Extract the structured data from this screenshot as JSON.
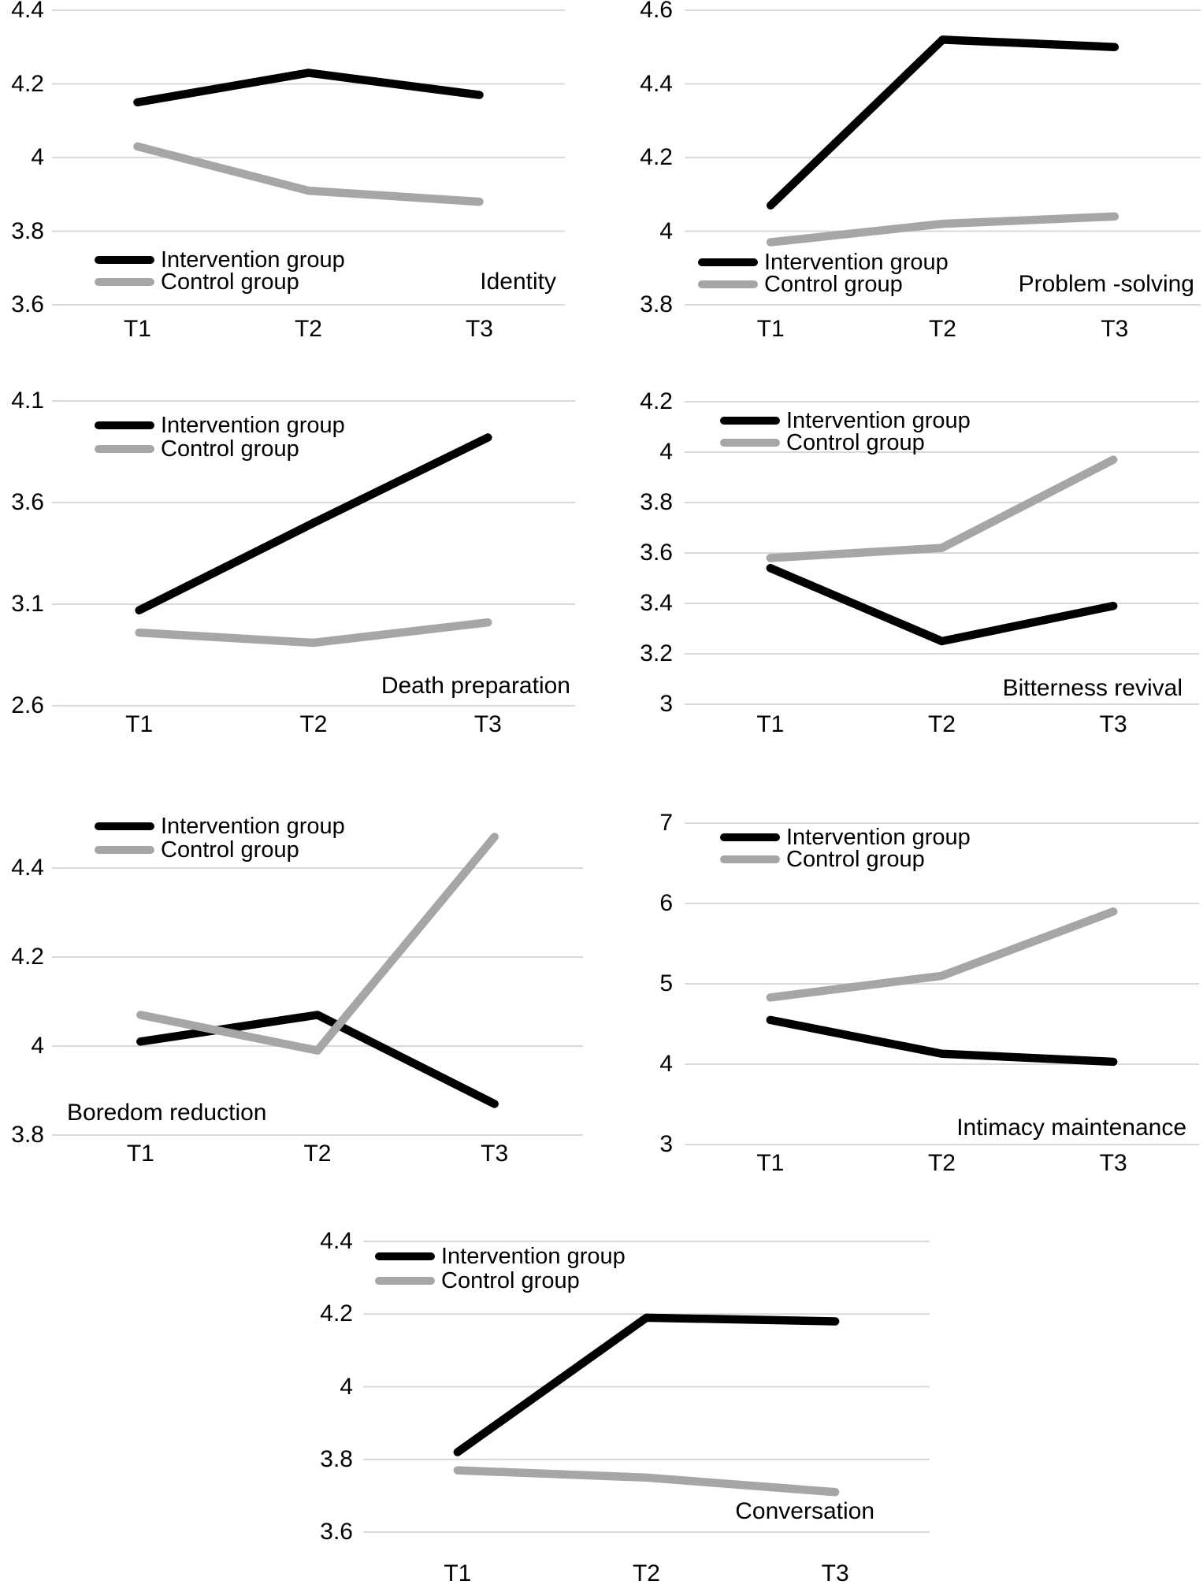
{
  "figure": {
    "background": "#ffffff",
    "gridline_color": "#d9d9d9",
    "text_color": "#000000",
    "legend": {
      "items": [
        {
          "label": "Intervention group",
          "color": "#000000"
        },
        {
          "label": "Control group",
          "color": "#a6a6a6"
        }
      ]
    }
  },
  "chart_data": [
    {
      "type": "line",
      "title": "Identity",
      "categories": [
        "T1",
        "T2",
        "T3"
      ],
      "yticks": [
        4.4,
        4.2,
        4,
        3.8,
        3.6
      ],
      "ylim": [
        3.6,
        4.4
      ],
      "grid": true,
      "legend_position": "inside-bottom-left",
      "title_position": "inside-bottom-right",
      "series": [
        {
          "name": "Intervention group",
          "color": "#000000",
          "values": [
            4.15,
            4.23,
            4.17
          ]
        },
        {
          "name": "Control group",
          "color": "#a6a6a6",
          "values": [
            4.03,
            3.91,
            3.88
          ]
        }
      ]
    },
    {
      "type": "line",
      "title": "Problem -solving",
      "categories": [
        "T1",
        "T2",
        "T3"
      ],
      "yticks": [
        4.6,
        4.4,
        4.2,
        4,
        3.8
      ],
      "ylim": [
        3.8,
        4.6
      ],
      "grid": true,
      "legend_position": "inside-bottom-left",
      "title_position": "inside-bottom-right",
      "series": [
        {
          "name": "Intervention group",
          "color": "#000000",
          "values": [
            4.07,
            4.52,
            4.5
          ]
        },
        {
          "name": "Control group",
          "color": "#a6a6a6",
          "values": [
            3.97,
            4.02,
            4.04
          ]
        }
      ]
    },
    {
      "type": "line",
      "title": "Death preparation",
      "categories": [
        "T1",
        "T2",
        "T3"
      ],
      "yticks": [
        4.1,
        3.6,
        3.1,
        2.6
      ],
      "ylim": [
        2.6,
        4.1
      ],
      "grid": true,
      "legend_position": "inside-top-left",
      "title_position": "inside-bottom-right",
      "series": [
        {
          "name": "Intervention group",
          "color": "#000000",
          "values": [
            3.07,
            3.5,
            3.92
          ]
        },
        {
          "name": "Control group",
          "color": "#a6a6a6",
          "values": [
            2.96,
            2.91,
            3.01
          ]
        }
      ]
    },
    {
      "type": "line",
      "title": "Bitterness revival",
      "categories": [
        "T1",
        "T2",
        "T3"
      ],
      "yticks": [
        4.2,
        4,
        3.8,
        3.6,
        3.4,
        3.2,
        3
      ],
      "ylim": [
        3,
        4.2
      ],
      "grid": true,
      "legend_position": "inside-top-left",
      "title_position": "inside-bottom-right",
      "series": [
        {
          "name": "Intervention group",
          "color": "#000000",
          "values": [
            3.54,
            3.25,
            3.39
          ]
        },
        {
          "name": "Control group",
          "color": "#a6a6a6",
          "values": [
            3.58,
            3.62,
            3.97
          ]
        }
      ]
    },
    {
      "type": "line",
      "title": "Boredom reduction",
      "categories": [
        "T1",
        "T2",
        "T3"
      ],
      "yticks": [
        4.4,
        4.2,
        4,
        3.8
      ],
      "ylim": [
        3.8,
        4.5
      ],
      "grid": true,
      "legend_position": "inside-top-left",
      "title_position": "inside-bottom-left",
      "series": [
        {
          "name": "Intervention group",
          "color": "#000000",
          "values": [
            4.01,
            4.07,
            3.87
          ]
        },
        {
          "name": "Control group",
          "color": "#a6a6a6",
          "values": [
            4.07,
            3.99,
            4.47
          ]
        }
      ]
    },
    {
      "type": "line",
      "title": "Intimacy maintenance",
      "categories": [
        "T1",
        "T2",
        "T3"
      ],
      "yticks": [
        7,
        6,
        5,
        4,
        3
      ],
      "ylim": [
        3,
        7
      ],
      "grid": true,
      "legend_position": "inside-top-left",
      "title_position": "inside-bottom-right",
      "series": [
        {
          "name": "Intervention group",
          "color": "#000000",
          "values": [
            4.55,
            4.13,
            4.03
          ]
        },
        {
          "name": "Control group",
          "color": "#a6a6a6",
          "values": [
            4.83,
            5.1,
            5.9
          ]
        }
      ]
    },
    {
      "type": "line",
      "title": "Conversation",
      "categories": [
        "T1",
        "T2",
        "T3"
      ],
      "yticks": [
        4.4,
        4.2,
        4,
        3.8,
        3.6
      ],
      "ylim": [
        3.6,
        4.4
      ],
      "grid": true,
      "legend_position": "inside-top-left",
      "title_position": "inside-bottom-right",
      "series": [
        {
          "name": "Intervention group",
          "color": "#000000",
          "values": [
            3.82,
            4.19,
            4.18
          ]
        },
        {
          "name": "Control group",
          "color": "#a6a6a6",
          "values": [
            3.77,
            3.75,
            3.71
          ]
        }
      ]
    }
  ]
}
